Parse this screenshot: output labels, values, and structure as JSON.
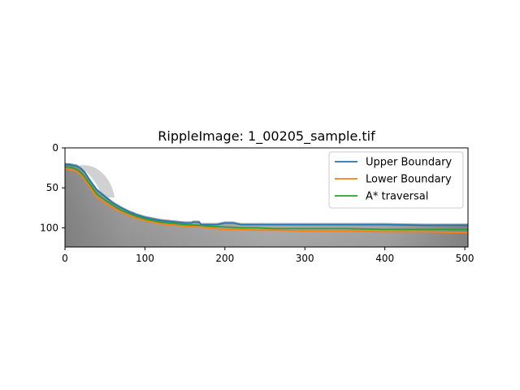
{
  "chart_data": {
    "type": "line",
    "title": "RippleImage: 1_00205_sample.tif",
    "xlabel": "",
    "ylabel": "",
    "xlim": [
      0,
      504
    ],
    "ylim": [
      124,
      0
    ],
    "y_inverted": true,
    "x_ticks": [
      0,
      100,
      200,
      300,
      400,
      500
    ],
    "y_ticks": [
      0,
      50,
      100
    ],
    "legend_position": "upper-right",
    "background": "grayscale image",
    "series": [
      {
        "name": "Upper Boundary",
        "color": "#1f77b4",
        "x": [
          0,
          5,
          10,
          15,
          20,
          25,
          30,
          35,
          40,
          50,
          60,
          70,
          80,
          90,
          100,
          110,
          120,
          130,
          140,
          150,
          158,
          160,
          168,
          170,
          178,
          190,
          200,
          210,
          220,
          240,
          260,
          300,
          350,
          400,
          450,
          500,
          504
        ],
        "y": [
          21,
          21,
          22,
          23,
          26,
          31,
          39,
          46,
          53,
          61,
          69,
          75,
          80,
          84,
          87,
          89,
          91,
          92,
          93,
          94,
          94,
          93,
          93,
          96,
          96,
          96,
          94,
          94,
          96,
          96,
          96,
          96,
          96,
          96,
          97,
          97,
          97
        ]
      },
      {
        "name": "Lower Boundary",
        "color": "#ff7f0e",
        "x": [
          0,
          5,
          10,
          15,
          20,
          25,
          30,
          35,
          40,
          50,
          60,
          70,
          80,
          90,
          100,
          110,
          120,
          130,
          140,
          150,
          170,
          180,
          200,
          220,
          240,
          260,
          300,
          350,
          400,
          450,
          500,
          504
        ],
        "y": [
          26,
          27,
          28,
          30,
          34,
          40,
          48,
          55,
          62,
          69,
          75,
          80,
          85,
          88,
          91,
          93,
          95,
          96,
          97,
          98,
          99,
          100,
          102,
          102,
          103,
          103,
          104,
          104,
          105,
          105,
          106,
          106
        ]
      },
      {
        "name": "A* traversal",
        "color": "#2ca02c",
        "x": [
          0,
          5,
          10,
          15,
          20,
          25,
          30,
          35,
          40,
          50,
          60,
          70,
          80,
          90,
          100,
          110,
          120,
          130,
          140,
          150,
          170,
          180,
          200,
          220,
          240,
          260,
          300,
          350,
          400,
          450,
          500,
          504
        ],
        "y": [
          24,
          24,
          25,
          27,
          31,
          37,
          44,
          51,
          58,
          65,
          72,
          78,
          82,
          86,
          89,
          91,
          93,
          94,
          95,
          96,
          97,
          98,
          99,
          100,
          100,
          101,
          101,
          101,
          102,
          102,
          102,
          102
        ]
      }
    ]
  }
}
